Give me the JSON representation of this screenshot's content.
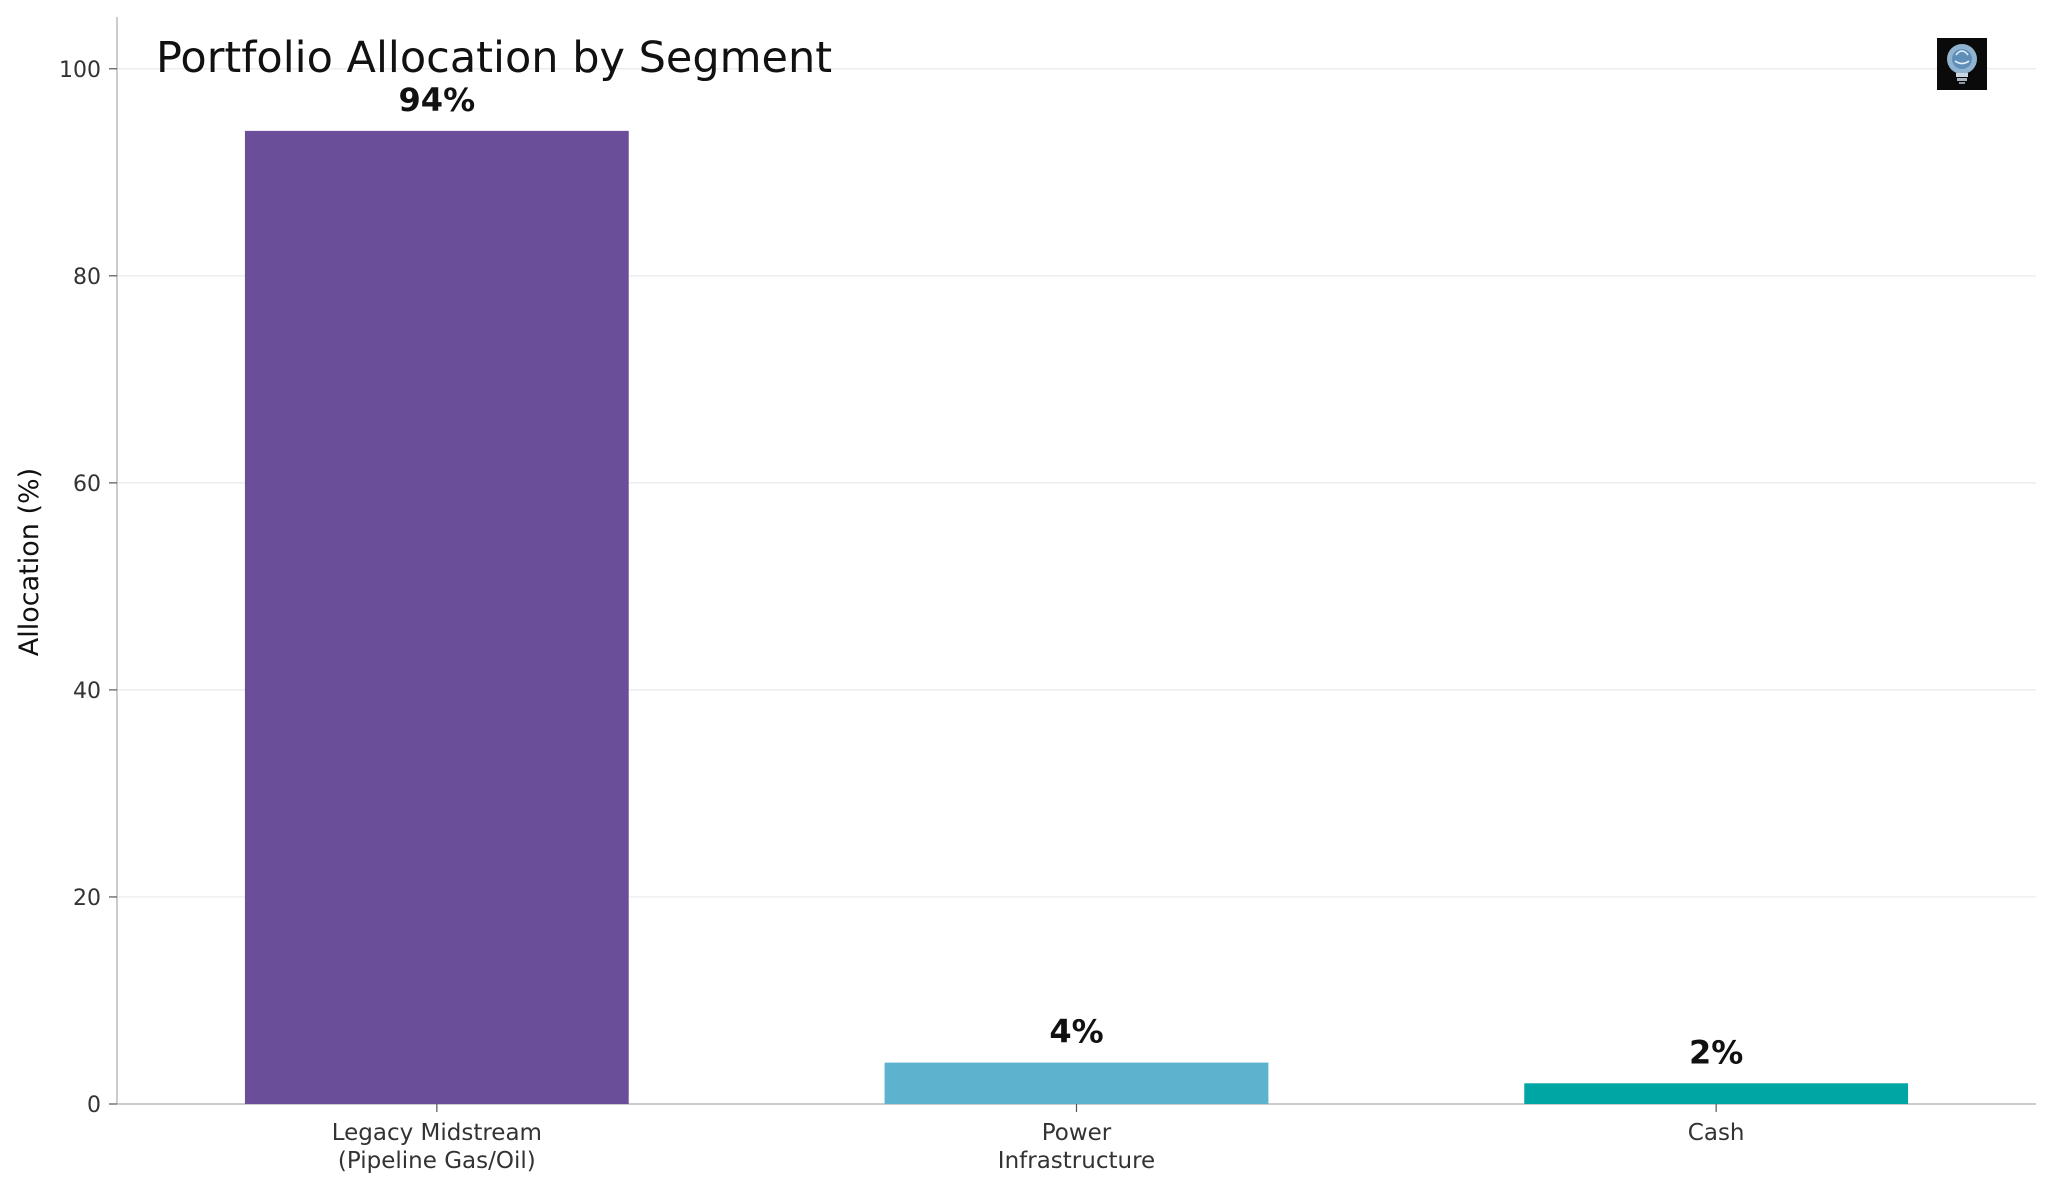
{
  "chart_data": {
    "type": "bar",
    "title": "Portfolio Allocation by Segment",
    "ylabel": "Allocation (%)",
    "xlabel": "",
    "ylim": [
      0,
      105
    ],
    "yticks": [
      0,
      20,
      40,
      60,
      80,
      100
    ],
    "grid": "horizontal",
    "categories": [
      [
        "Legacy Midstream",
        "(Pipeline Gas/Oil)"
      ],
      [
        "Power",
        "Infrastructure"
      ],
      [
        "Cash"
      ]
    ],
    "values": [
      94,
      4,
      2
    ],
    "data_labels": [
      "94%",
      "4%",
      "2%"
    ],
    "colors": [
      "#6b4e99",
      "#5db3cd",
      "#00a6a3"
    ],
    "logo": "lightbulb-brain-icon"
  }
}
